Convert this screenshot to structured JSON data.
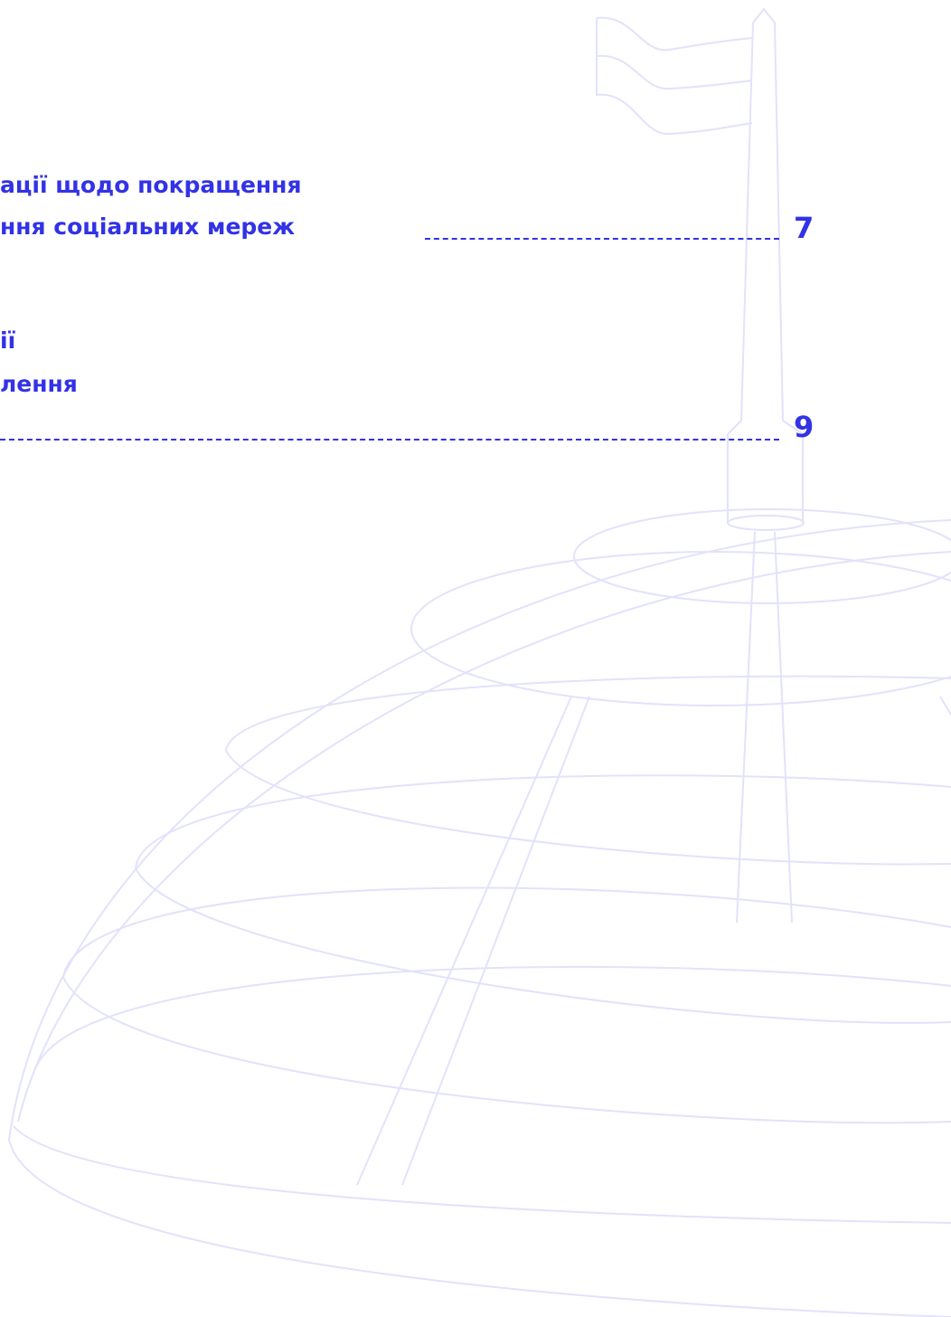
{
  "toc": {
    "entries": [
      {
        "lines": [
          "ації щодо покращення",
          "ння соціальних мереж"
        ],
        "page": 7
      },
      {
        "lines": [
          "ії",
          "лення"
        ],
        "page": 9
      }
    ]
  }
}
